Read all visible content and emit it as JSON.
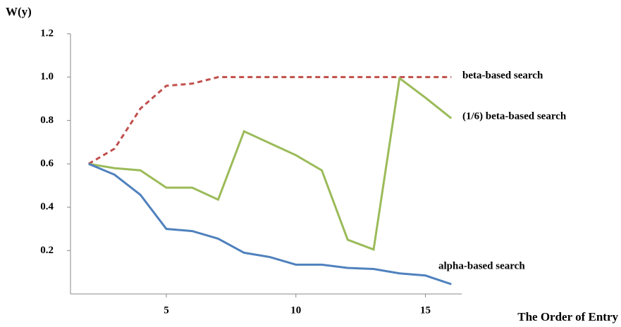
{
  "chart_data": {
    "type": "line",
    "y_label": "W(y)",
    "x_label": "The Order of Entry",
    "x": [
      2,
      3,
      4,
      5,
      6,
      7,
      8,
      9,
      10,
      11,
      12,
      13,
      14,
      15,
      16
    ],
    "xlim": [
      1.3,
      16.4
    ],
    "xticks": [
      5,
      10,
      15
    ],
    "ylim": [
      0,
      1.2
    ],
    "yticks": [
      0.2,
      0.4,
      0.6,
      0.8,
      {
        "value": 1,
        "label": "1.0"
      },
      1.2
    ],
    "series": [
      {
        "name": "beta-based search",
        "color": "#c0504d",
        "dash": true,
        "values": [
          0.6,
          0.67,
          0.855,
          0.96,
          0.97,
          1.0,
          1.0,
          1.0,
          1.0,
          1.0,
          1.0,
          1.0,
          1.0,
          1.0,
          1.0
        ]
      },
      {
        "name": "(1/6) beta-based search",
        "color": "#9bbb59",
        "dash": false,
        "values": [
          0.6,
          0.58,
          0.57,
          0.49,
          0.49,
          0.435,
          0.75,
          0.695,
          0.64,
          0.57,
          0.25,
          0.205,
          0.995,
          0.905,
          0.81
        ]
      },
      {
        "name": "alpha-based search",
        "color": "#4f81bd",
        "dash": false,
        "values": [
          0.6,
          0.55,
          0.457,
          0.3,
          0.29,
          0.255,
          0.19,
          0.17,
          0.135,
          0.135,
          0.12,
          0.115,
          0.095,
          0.085,
          0.045
        ]
      }
    ]
  }
}
